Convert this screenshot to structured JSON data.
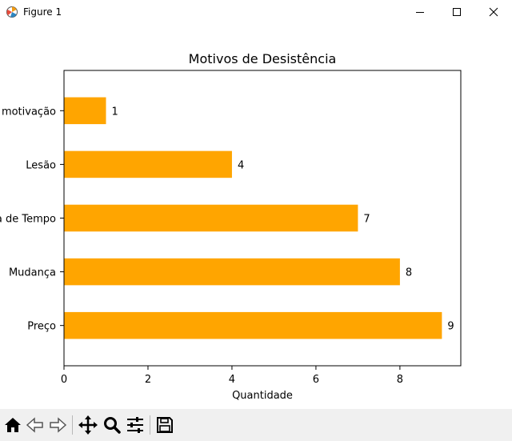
{
  "window": {
    "title": "Figure 1",
    "icon": "matplotlib-icon",
    "controls": [
      "minimize-icon",
      "maximize-icon",
      "close-icon"
    ]
  },
  "toolbar": {
    "buttons": [
      "home-icon",
      "back-icon",
      "forward-icon",
      "pan-icon",
      "zoom-icon",
      "configure-subplots-icon",
      "save-icon"
    ]
  },
  "chart_data": {
    "type": "bar",
    "orientation": "horizontal",
    "title": "Motivos de Desistência",
    "xlabel": "Quantidade",
    "ylabel": "",
    "categories": [
      "Preço",
      "Mudança",
      "Falta de Tempo",
      "Lesão",
      "Falta de motivação"
    ],
    "values": [
      9,
      8,
      7,
      4,
      1
    ],
    "data_labels": [
      "9",
      "8",
      "7",
      "4",
      "1"
    ],
    "xlim": [
      0,
      9.45
    ],
    "xticks": [
      0,
      2,
      4,
      6,
      8
    ],
    "grid": false,
    "legend": "none",
    "bar_color": "#FFA500"
  }
}
